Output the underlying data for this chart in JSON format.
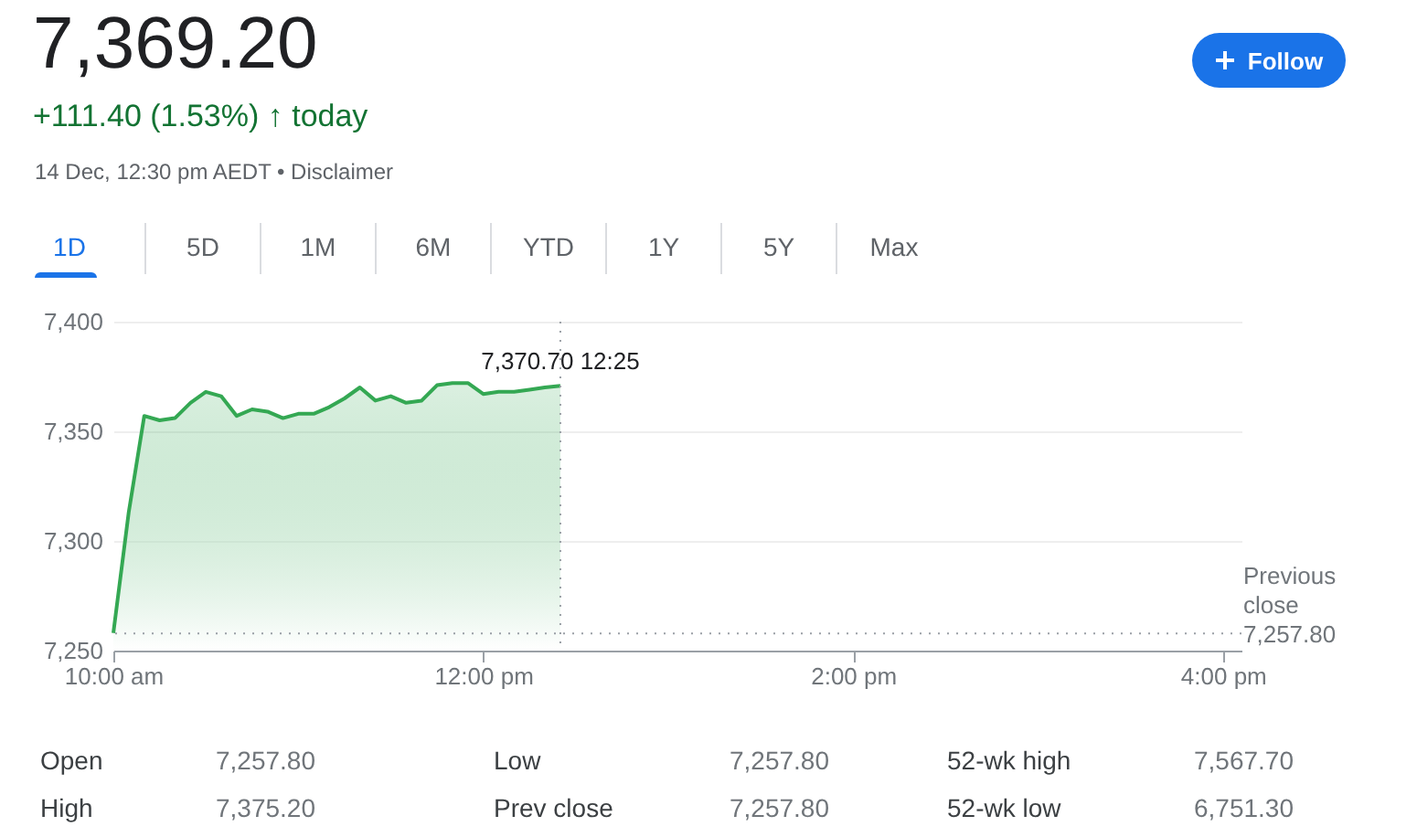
{
  "chart_data": {
    "type": "area",
    "title": "7,369.20",
    "subtitle": "+111.40 (1.53%) ↑ today",
    "x": [
      10,
      10.083,
      10.167,
      10.25,
      10.333,
      10.417,
      10.5,
      10.583,
      10.667,
      10.75,
      10.833,
      10.917,
      11,
      11.083,
      11.167,
      11.25,
      11.333,
      11.417,
      11.5,
      11.583,
      11.667,
      11.75,
      11.833,
      11.917,
      12,
      12.083,
      12.167,
      12.25,
      12.333,
      12.417
    ],
    "series": [
      {
        "color": "#34a853",
        "values": [
          7258,
          7313,
          7357,
          7355,
          7356,
          7363,
          7368,
          7366,
          7357,
          7360,
          7359,
          7356,
          7358,
          7358,
          7361,
          7365,
          7370,
          7364,
          7366,
          7363,
          7364,
          7371,
          7372,
          7372,
          7367,
          7368,
          7368,
          7369,
          7370,
          7370.7
        ]
      }
    ],
    "xlim": [
      10,
      16.1
    ],
    "xticks": [
      {
        "value": 10,
        "label": "10:00 am"
      },
      {
        "value": 12,
        "label": "12:00 pm"
      },
      {
        "value": 14,
        "label": "2:00 pm"
      },
      {
        "value": 16,
        "label": "4:00 pm"
      }
    ],
    "ylim": [
      7250,
      7400
    ],
    "yticks": [
      {
        "value": 7250,
        "label": "7,250"
      },
      {
        "value": 7300,
        "label": "7,300"
      },
      {
        "value": 7350,
        "label": "7,350"
      },
      {
        "value": 7400,
        "label": "7,400"
      }
    ],
    "grid": "y",
    "ref_lines": [
      {
        "axis": "y",
        "value": 7257.8,
        "label": "Previous close 7,257.80",
        "color": "#9aa0a6",
        "line_style": "dotted"
      },
      {
        "axis": "x",
        "value": 12.417,
        "label": null,
        "color": "#9aa0a6",
        "line_style": "dotted"
      }
    ],
    "annotations": [
      "14 Dec, 12:30 pm AEDT • Disclaimer",
      "Follow",
      "1D",
      "5D",
      "1M",
      "6M",
      "YTD",
      "1Y",
      "5Y",
      "Max",
      "Open",
      "7,257.80",
      "Low",
      "7,257.80",
      "52-wk high",
      "7,567.70",
      "High",
      "7,375.20",
      "Prev close",
      "7,257.80",
      "52-wk low",
      "6,751.30",
      {
        "text": "7,370.70  12:25",
        "x": 12.417,
        "y": 7370.7
      }
    ]
  }
}
